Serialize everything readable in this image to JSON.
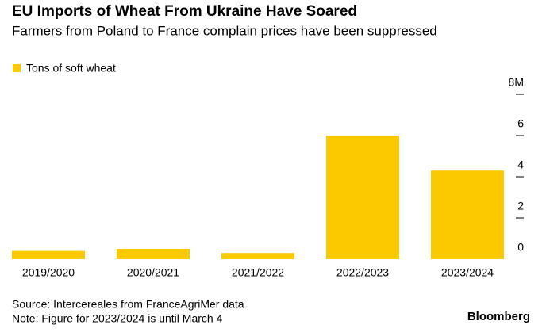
{
  "chart_data": {
    "type": "bar",
    "title": "EU Imports of Wheat From Ukraine Have Soared",
    "subtitle": "Farmers from Poland to France complain prices have been suppressed",
    "series": [
      {
        "name": "Tons of soft wheat",
        "color": "#fcc800",
        "values": [
          0.4,
          0.5,
          0.3,
          6.0,
          4.3
        ]
      }
    ],
    "categories": [
      "2019/2020",
      "2020/2021",
      "2021/2022",
      "2022/2023",
      "2023/2024"
    ],
    "ylim": [
      0,
      8
    ],
    "yticks": [
      0,
      2,
      4,
      6,
      {
        "value": 8,
        "label": "8M"
      }
    ],
    "source": "Source: Intercereales from FranceAgriMer data",
    "note": "Note: Figure for 2023/2024 is until March 4",
    "brand": "Bloomberg"
  }
}
